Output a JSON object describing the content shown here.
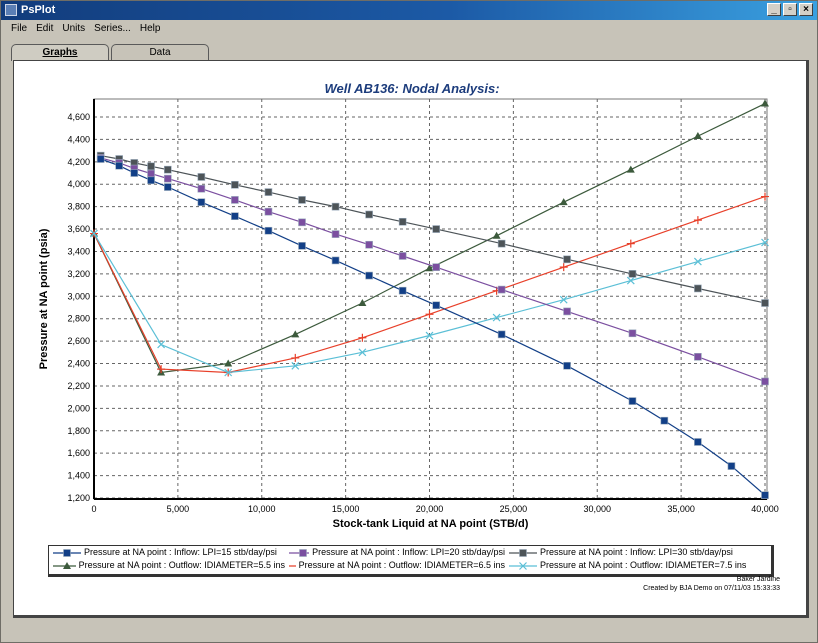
{
  "window": {
    "title": "PsPlot",
    "controls": [
      "minimize",
      "maximize",
      "close"
    ]
  },
  "menu": {
    "items": [
      {
        "label": "File"
      },
      {
        "label": "Edit"
      },
      {
        "label": "Units"
      },
      {
        "label": "Series..."
      },
      {
        "label": "Help"
      }
    ]
  },
  "tabs": [
    {
      "label": "Graphs",
      "active": true
    },
    {
      "label": "Data",
      "active": false
    }
  ],
  "credits": {
    "line1": "Baker Jardine",
    "line2": "Created by BJA Demo on 07/11/03   15:33:33"
  },
  "chart_data": {
    "type": "line",
    "title": "Well AB136: Nodal Analysis:",
    "xlabel": "Stock-tank Liquid at NA point (STB/d)",
    "ylabel": "Pressure at NA point (psia)",
    "xlim": [
      0,
      40000
    ],
    "ylim": [
      1200,
      4760
    ],
    "xticks": [
      0,
      5000,
      10000,
      15000,
      20000,
      25000,
      30000,
      35000,
      40000
    ],
    "xtick_labels": [
      "0",
      "5,000",
      "10,000",
      "15,000",
      "20,000",
      "25,000",
      "30,000",
      "35,000",
      "40,000"
    ],
    "yticks": [
      1200,
      1400,
      1600,
      1800,
      2000,
      2200,
      2400,
      2600,
      2800,
      3000,
      3200,
      3400,
      3600,
      3800,
      4000,
      4200,
      4400,
      4600
    ],
    "ytick_labels": [
      "1,200",
      "1,400",
      "1,600",
      "1,800",
      "2,000",
      "2,200",
      "2,400",
      "2,600",
      "2,800",
      "3,000",
      "3,200",
      "3,400",
      "3,600",
      "3,800",
      "4,000",
      "4,200",
      "4,400",
      "4,600"
    ],
    "grid": true,
    "legend_position": "bottom",
    "series": [
      {
        "name": "Pressure at NA point : Inflow: LPI=15 stb/day/psi",
        "color": "#123f87",
        "marker": "square",
        "x": [
          400,
          1500,
          2400,
          3400,
          4400,
          6400,
          8400,
          10400,
          12400,
          14400,
          16400,
          18400,
          20400,
          24300,
          28200,
          32100,
          34000,
          36000,
          38000,
          40000
        ],
        "y": [
          4225,
          4165,
          4100,
          4035,
          3975,
          3840,
          3715,
          3585,
          3450,
          3320,
          3185,
          3050,
          2920,
          2660,
          2380,
          2065,
          1890,
          1700,
          1485,
          1225
        ]
      },
      {
        "name": "Pressure at NA point : Inflow: LPI=20 stb/day/psi",
        "color": "#7b4fa0",
        "marker": "square",
        "x": [
          400,
          1500,
          2400,
          3400,
          4400,
          6400,
          8400,
          10400,
          12400,
          14400,
          16400,
          18400,
          20400,
          24300,
          28200,
          32100,
          36000,
          40000
        ],
        "y": [
          4235,
          4190,
          4140,
          4095,
          4050,
          3960,
          3860,
          3755,
          3660,
          3555,
          3460,
          3360,
          3260,
          3060,
          2865,
          2670,
          2460,
          2240
        ]
      },
      {
        "name": "Pressure at NA point : Inflow: LPI=30 stb/day/psi",
        "color": "#4d5458",
        "marker": "square",
        "x": [
          400,
          1500,
          2400,
          3400,
          4400,
          6400,
          8400,
          10400,
          12400,
          14400,
          16400,
          18400,
          20400,
          24300,
          28200,
          32100,
          36000,
          40000
        ],
        "y": [
          4255,
          4225,
          4190,
          4160,
          4130,
          4065,
          3995,
          3930,
          3860,
          3800,
          3730,
          3665,
          3600,
          3470,
          3330,
          3200,
          3070,
          2940
        ]
      },
      {
        "name": "Pressure at NA point : Outflow: IDIAMETER=5.5 ins",
        "color": "#3c5a3c",
        "marker": "triangle",
        "x": [
          0,
          4000,
          8000,
          12000,
          16000,
          20000,
          24000,
          28000,
          32000,
          36000,
          40000
        ],
        "y": [
          3560,
          2320,
          2400,
          2660,
          2940,
          3250,
          3540,
          3840,
          4130,
          4430,
          4720
        ]
      },
      {
        "name": "Pressure at NA point : Outflow: IDIAMETER=6.5 ins",
        "color": "#e8402a",
        "marker": "plus",
        "x": [
          0,
          4000,
          8000,
          12000,
          16000,
          20000,
          24000,
          28000,
          32000,
          36000,
          40000
        ],
        "y": [
          3560,
          2350,
          2320,
          2450,
          2630,
          2840,
          3050,
          3260,
          3470,
          3680,
          3890
        ]
      },
      {
        "name": "Pressure at NA point : Outflow: IDIAMETER=7.5 ins",
        "color": "#5bbfd6",
        "marker": "x",
        "x": [
          0,
          4000,
          8000,
          12000,
          16000,
          20000,
          24000,
          28000,
          32000,
          36000,
          40000
        ],
        "y": [
          3560,
          2570,
          2320,
          2380,
          2500,
          2650,
          2810,
          2970,
          3140,
          3310,
          3480
        ]
      }
    ]
  }
}
